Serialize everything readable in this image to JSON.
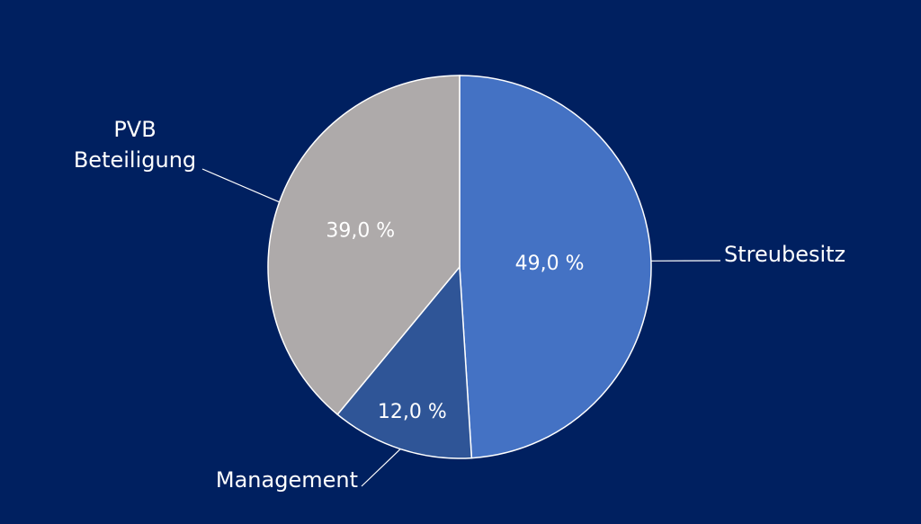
{
  "chart_data": {
    "type": "pie",
    "categories": [
      "Streubesitz",
      "Management",
      "PVB Beteiligung"
    ],
    "values": [
      49,
      12,
      39
    ],
    "value_labels": [
      "49,0 %",
      "12,0 %",
      "39,0 %"
    ],
    "colors": [
      "#4472c4",
      "#2f5597",
      "#aeaaaa"
    ]
  }
}
